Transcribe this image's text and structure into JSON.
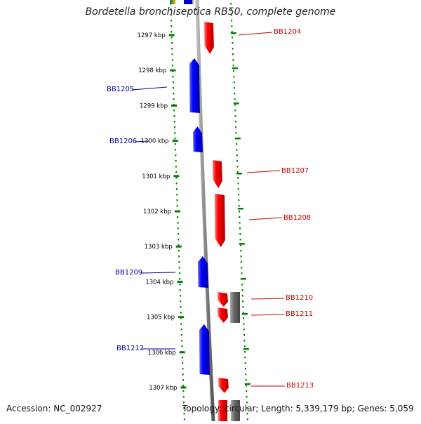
{
  "title": "Bordetella bronchiseptica RB50, complete genome",
  "footer": {
    "accession": "Accession: NC_002927",
    "topology": "Topology: circular; Length: 5,339,179 bp; Genes: 5,059"
  },
  "colors": {
    "forward_gene": "#ff0000",
    "reverse_gene": "#0000ff",
    "other_feature": "#666666",
    "tick": "#008000",
    "backbone": "#888888",
    "forward_label": "#cc0000",
    "reverse_label": "#000099"
  },
  "ticks": [
    "1297 kbp",
    "1298 kbp",
    "1299 kbp",
    "1300 kbp",
    "1301 kbp",
    "1302 kbp",
    "1303 kbp",
    "1304 kbp",
    "1305 kbp",
    "1306 kbp",
    "1307 kbp"
  ],
  "genes": [
    {
      "name": "BB1204",
      "strand": "forward"
    },
    {
      "name": "BB1205",
      "strand": "reverse"
    },
    {
      "name": "BB1206",
      "strand": "reverse"
    },
    {
      "name": "BB1207",
      "strand": "forward"
    },
    {
      "name": "BB1208",
      "strand": "forward"
    },
    {
      "name": "BB1209",
      "strand": "reverse"
    },
    {
      "name": "BB1210",
      "strand": "forward"
    },
    {
      "name": "BB1211",
      "strand": "forward"
    },
    {
      "name": "BB1212",
      "strand": "reverse"
    },
    {
      "name": "BB1213",
      "strand": "forward"
    }
  ]
}
